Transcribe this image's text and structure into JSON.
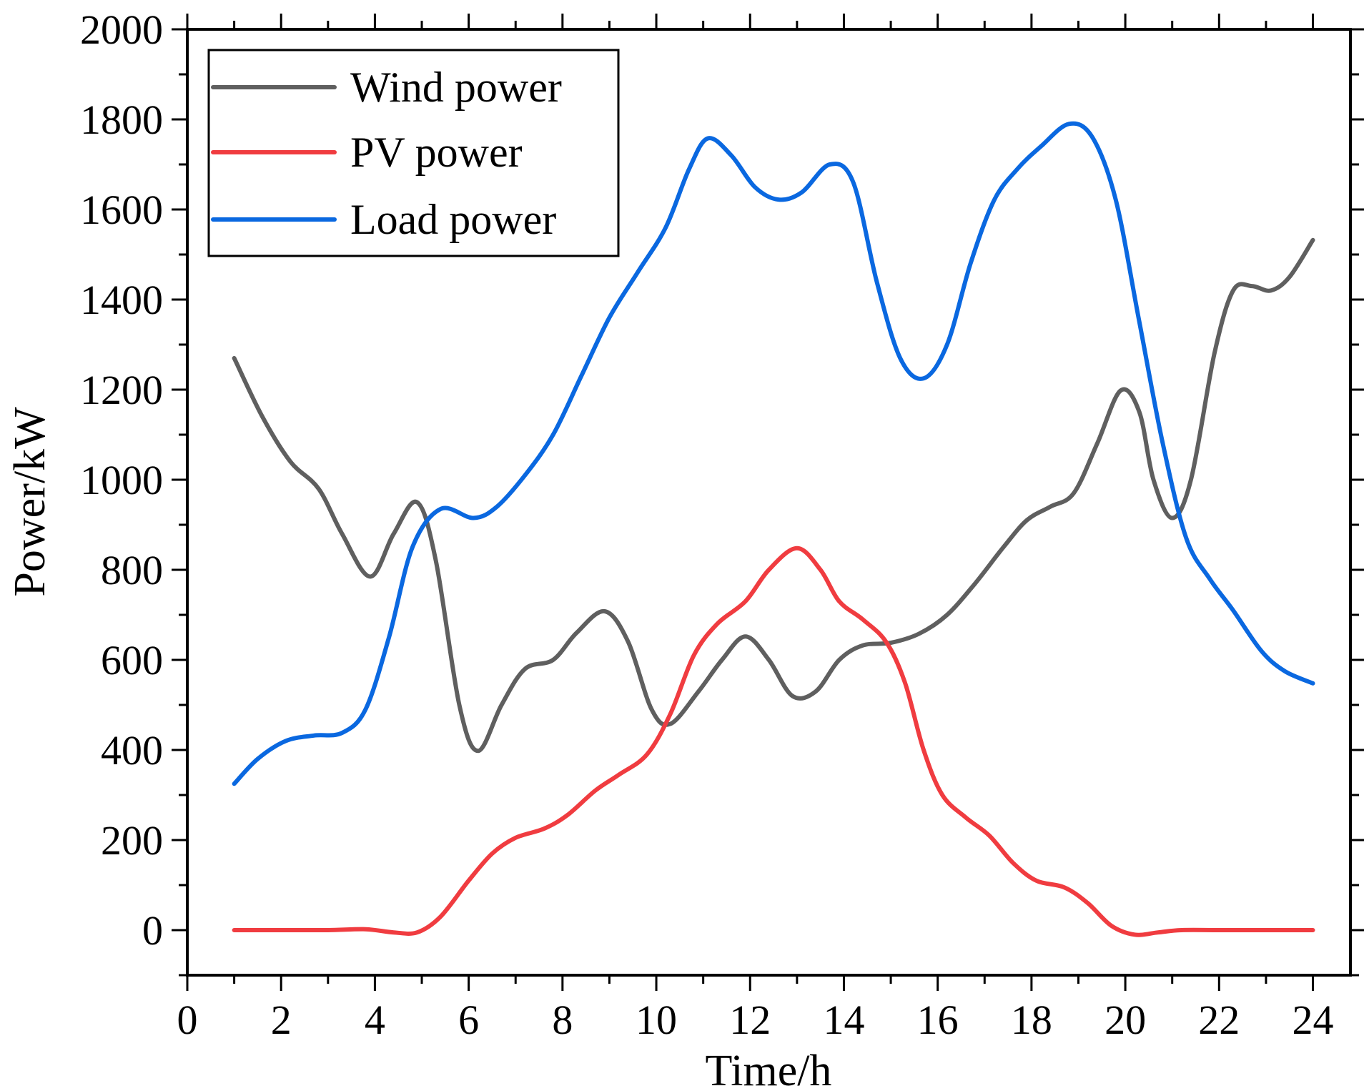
{
  "chart_data": {
    "type": "line",
    "title": "",
    "xlabel": "Time/h",
    "ylabel": "Power/kW",
    "xlim": [
      0,
      24.8
    ],
    "ylim": [
      -100,
      2000
    ],
    "xticks": [
      0,
      2,
      4,
      6,
      8,
      10,
      12,
      14,
      16,
      18,
      20,
      22,
      24
    ],
    "xtick_labels": [
      "0",
      "2",
      "4",
      "6",
      "8",
      "10",
      "12",
      "14",
      "16",
      "18",
      "20",
      "22",
      "24"
    ],
    "yticks": [
      0,
      200,
      400,
      600,
      800,
      1000,
      1200,
      1400,
      1600,
      1800,
      2000
    ],
    "ytick_labels": [
      "0",
      "200",
      "400",
      "600",
      "800",
      "1000",
      "1200",
      "1400",
      "1600",
      "1800",
      "2000"
    ],
    "grid": false,
    "legend_position": "top-left",
    "series": [
      {
        "name": "Wind power",
        "color": "#5f5f5f",
        "points": [
          [
            1,
            1270
          ],
          [
            1.6,
            1140
          ],
          [
            2.2,
            1040
          ],
          [
            2.8,
            980
          ],
          [
            3.3,
            880
          ],
          [
            3.9,
            785
          ],
          [
            4.4,
            880
          ],
          [
            4.9,
            950
          ],
          [
            5.3,
            820
          ],
          [
            5.8,
            500
          ],
          [
            6.2,
            398
          ],
          [
            6.7,
            500
          ],
          [
            7.2,
            580
          ],
          [
            7.8,
            600
          ],
          [
            8.3,
            660
          ],
          [
            8.9,
            708
          ],
          [
            9.4,
            640
          ],
          [
            9.9,
            490
          ],
          [
            10.3,
            458
          ],
          [
            10.9,
            530
          ],
          [
            11.4,
            600
          ],
          [
            11.9,
            652
          ],
          [
            12.4,
            600
          ],
          [
            12.9,
            520
          ],
          [
            13.4,
            530
          ],
          [
            13.9,
            600
          ],
          [
            14.4,
            632
          ],
          [
            15.0,
            638
          ],
          [
            15.6,
            658
          ],
          [
            16.2,
            700
          ],
          [
            16.8,
            770
          ],
          [
            17.4,
            850
          ],
          [
            17.9,
            910
          ],
          [
            18.4,
            940
          ],
          [
            18.9,
            970
          ],
          [
            19.4,
            1080
          ],
          [
            19.9,
            1198
          ],
          [
            20.3,
            1150
          ],
          [
            20.6,
            1000
          ],
          [
            21.0,
            915
          ],
          [
            21.4,
            1000
          ],
          [
            21.9,
            1280
          ],
          [
            22.3,
            1420
          ],
          [
            22.7,
            1430
          ],
          [
            23.1,
            1420
          ],
          [
            23.5,
            1450
          ],
          [
            24,
            1532
          ]
        ]
      },
      {
        "name": "PV power",
        "color": "#f03c40",
        "points": [
          [
            1,
            0
          ],
          [
            2,
            0
          ],
          [
            3,
            0
          ],
          [
            3.8,
            2
          ],
          [
            4.4,
            -5
          ],
          [
            4.9,
            -5
          ],
          [
            5.4,
            30
          ],
          [
            6,
            110
          ],
          [
            6.5,
            170
          ],
          [
            7,
            205
          ],
          [
            7.6,
            225
          ],
          [
            8.1,
            255
          ],
          [
            8.7,
            310
          ],
          [
            9.2,
            345
          ],
          [
            9.8,
            390
          ],
          [
            10.3,
            480
          ],
          [
            10.8,
            610
          ],
          [
            11.3,
            680
          ],
          [
            11.9,
            730
          ],
          [
            12.4,
            800
          ],
          [
            13,
            848
          ],
          [
            13.5,
            800
          ],
          [
            13.9,
            730
          ],
          [
            14.4,
            690
          ],
          [
            14.9,
            640
          ],
          [
            15.3,
            550
          ],
          [
            15.7,
            400
          ],
          [
            16.1,
            300
          ],
          [
            16.6,
            250
          ],
          [
            17.1,
            210
          ],
          [
            17.6,
            150
          ],
          [
            18.1,
            110
          ],
          [
            18.7,
            95
          ],
          [
            19.2,
            60
          ],
          [
            19.7,
            10
          ],
          [
            20.2,
            -10
          ],
          [
            20.7,
            -5
          ],
          [
            21.2,
            0
          ],
          [
            22,
            0
          ],
          [
            23,
            0
          ],
          [
            24,
            0
          ]
        ]
      },
      {
        "name": "Load power",
        "color": "#0a68e0",
        "points": [
          [
            1,
            325
          ],
          [
            1.5,
            380
          ],
          [
            2.1,
            420
          ],
          [
            2.7,
            432
          ],
          [
            3.3,
            438
          ],
          [
            3.8,
            490
          ],
          [
            4.3,
            650
          ],
          [
            4.8,
            850
          ],
          [
            5.4,
            935
          ],
          [
            6.1,
            915
          ],
          [
            6.6,
            940
          ],
          [
            7.2,
            1010
          ],
          [
            7.8,
            1100
          ],
          [
            8.4,
            1230
          ],
          [
            9,
            1360
          ],
          [
            9.6,
            1460
          ],
          [
            10.2,
            1560
          ],
          [
            10.7,
            1690
          ],
          [
            11.1,
            1758
          ],
          [
            11.6,
            1720
          ],
          [
            12.1,
            1650
          ],
          [
            12.6,
            1622
          ],
          [
            13.1,
            1638
          ],
          [
            13.7,
            1700
          ],
          [
            14.2,
            1660
          ],
          [
            14.7,
            1440
          ],
          [
            15.2,
            1270
          ],
          [
            15.7,
            1225
          ],
          [
            16.2,
            1300
          ],
          [
            16.7,
            1480
          ],
          [
            17.2,
            1620
          ],
          [
            17.7,
            1690
          ],
          [
            18.2,
            1740
          ],
          [
            18.8,
            1790
          ],
          [
            19.3,
            1760
          ],
          [
            19.8,
            1620
          ],
          [
            20.3,
            1350
          ],
          [
            20.8,
            1080
          ],
          [
            21.3,
            870
          ],
          [
            21.8,
            780
          ],
          [
            22.3,
            710
          ],
          [
            22.9,
            620
          ],
          [
            23.4,
            575
          ],
          [
            24,
            548
          ]
        ]
      }
    ]
  }
}
